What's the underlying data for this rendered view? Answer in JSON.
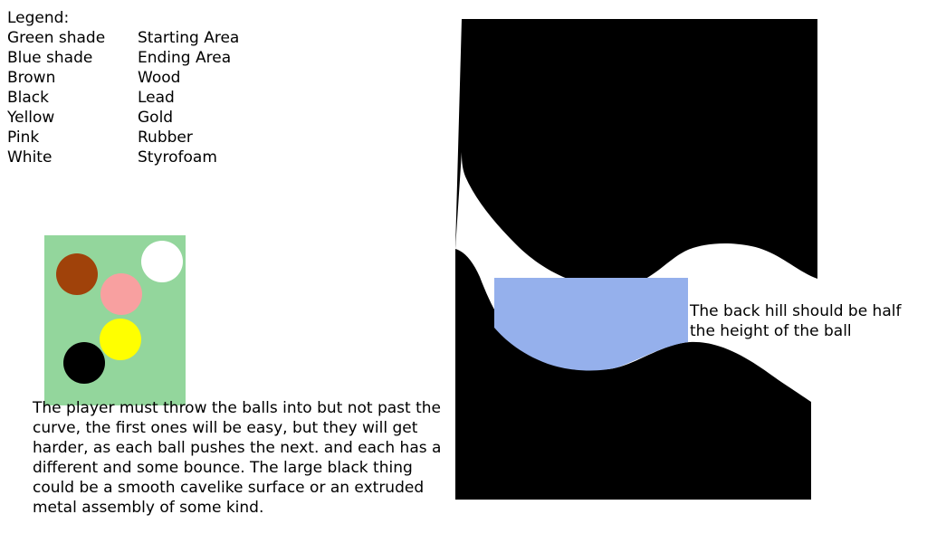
{
  "legend": {
    "title": "Legend:",
    "items": [
      {
        "key": "Green shade",
        "value": "Starting Area"
      },
      {
        "key": "Blue shade",
        "value": "Ending Area"
      },
      {
        "key": "Brown",
        "value": "Wood"
      },
      {
        "key": "Black",
        "value": "Lead"
      },
      {
        "key": "Yellow",
        "value": "Gold"
      },
      {
        "key": "Pink",
        "value": "Rubber"
      },
      {
        "key": "White",
        "value": "Styrofoam"
      }
    ]
  },
  "colors": {
    "starting_area": "#93d69c",
    "ending_area": "#95b0ec",
    "wood": "#a0420a",
    "lead": "#000000",
    "gold": "#ffff00",
    "rubber": "#f8a0a0",
    "styrofoam": "#ffffff"
  },
  "description": "The player must throw the balls into but not past the curve, the first ones will be easy, but they will get harder, as each ball pushes the next. and each has a different and some bounce. The large black thing could be a smooth cavelike surface or an extruded metal assembly of some kind.",
  "note": "The back hill should be half the height of the ball"
}
